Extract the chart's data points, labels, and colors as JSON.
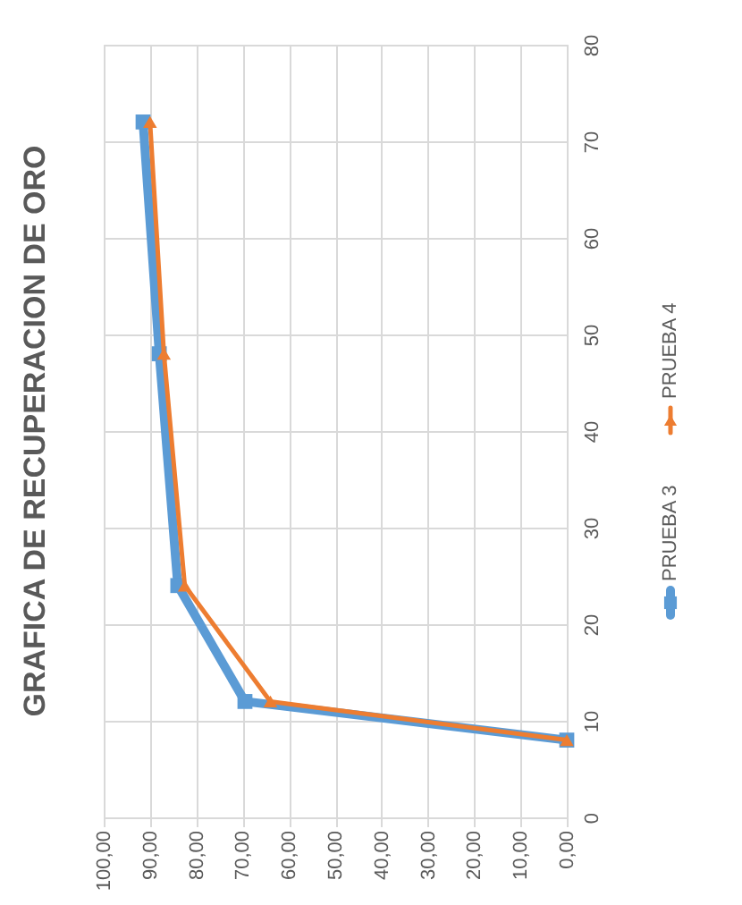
{
  "chart_data": {
    "type": "line",
    "title": "GRAFICA DE RECUPERACION DE ORO",
    "xlim": [
      100,
      0
    ],
    "xticks": [
      {
        "value": 100,
        "label": "100,00"
      },
      {
        "value": 90,
        "label": "90,00"
      },
      {
        "value": 80,
        "label": "80,00"
      },
      {
        "value": 70,
        "label": "70,00"
      },
      {
        "value": 60,
        "label": "60,00"
      },
      {
        "value": 50,
        "label": "50,00"
      },
      {
        "value": 40,
        "label": "40,00"
      },
      {
        "value": 30,
        "label": "30,00"
      },
      {
        "value": 20,
        "label": "20,00"
      },
      {
        "value": 10,
        "label": "10,00"
      },
      {
        "value": 0,
        "label": "0,00"
      }
    ],
    "ylim": [
      0,
      80
    ],
    "yticks": [
      0,
      10,
      20,
      30,
      40,
      50,
      60,
      70,
      80
    ],
    "grid": true,
    "legend": "right",
    "series": [
      {
        "name": "PRUEBA 3",
        "color": "#5b9bd5",
        "marker": "square",
        "x": [
          91.5,
          88,
          84,
          69.5,
          0
        ],
        "values": [
          72,
          48,
          24,
          12,
          8
        ]
      },
      {
        "name": "PRUEBA 4",
        "color": "#ed7d31",
        "marker": "triangle",
        "x": [
          90,
          87,
          82.5,
          64,
          0
        ],
        "values": [
          72,
          48,
          24,
          12,
          8
        ]
      }
    ]
  }
}
